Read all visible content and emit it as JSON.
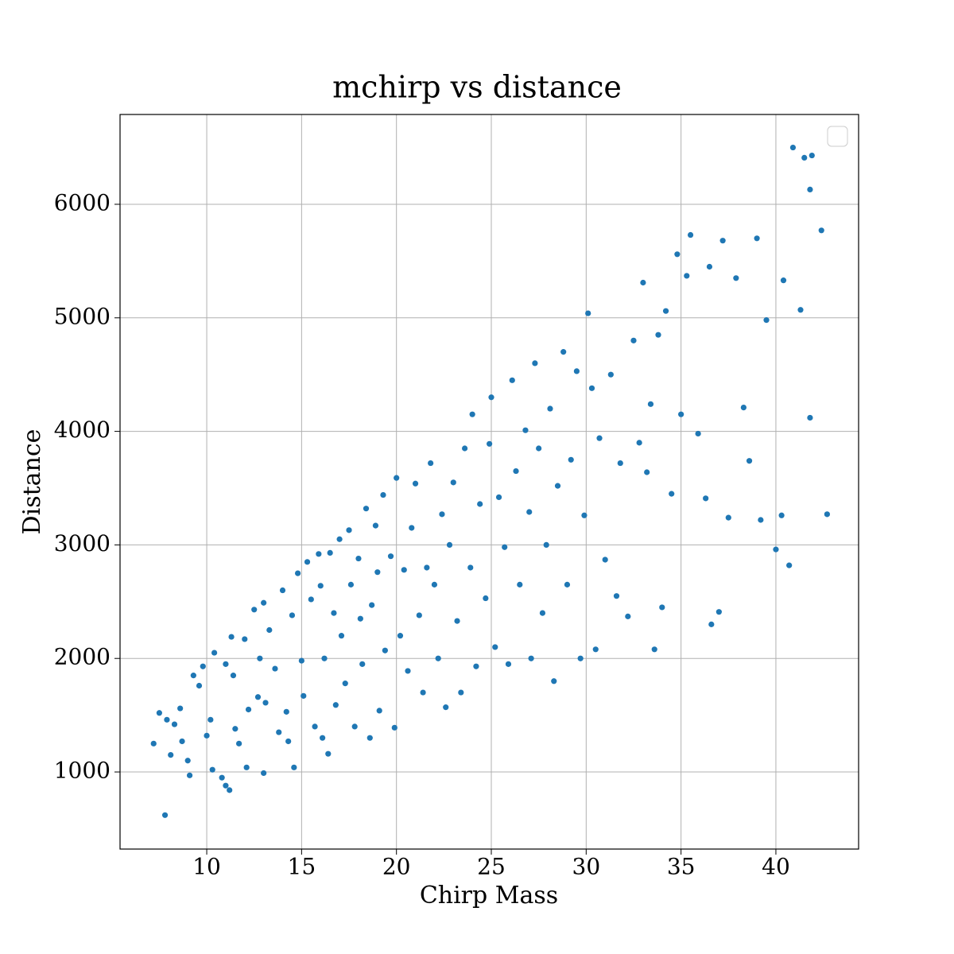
{
  "chart_data": {
    "type": "scatter",
    "title": "mchirp vs distance",
    "x_label": "Chirp Mass",
    "y_label": "Distance",
    "color": "#1f77b4",
    "grid": true,
    "xlim": [
      5.43,
      44.36
    ],
    "ylim": [
      321,
      6791
    ],
    "xticks": [
      10,
      15,
      20,
      25,
      30,
      35,
      40
    ],
    "yticks": [
      1000,
      2000,
      3000,
      4000,
      5000,
      6000
    ],
    "x": [
      7.2,
      7.5,
      7.8,
      7.9,
      8.1,
      8.3,
      8.6,
      8.7,
      9.0,
      9.1,
      9.3,
      9.6,
      9.8,
      10.0,
      10.2,
      10.3,
      10.4,
      10.8,
      11.0,
      11.2,
      11.0,
      11.3,
      11.4,
      11.5,
      11.7,
      12.0,
      12.1,
      12.2,
      12.5,
      12.7,
      12.8,
      13.0,
      13.0,
      13.1,
      13.3,
      13.6,
      13.8,
      14.0,
      14.2,
      14.3,
      14.5,
      14.6,
      14.8,
      15.0,
      15.1,
      15.3,
      15.5,
      15.7,
      15.9,
      16.0,
      16.1,
      16.2,
      16.4,
      16.5,
      16.7,
      16.8,
      17.0,
      17.1,
      17.3,
      17.5,
      17.6,
      17.8,
      18.0,
      18.1,
      18.2,
      18.4,
      18.6,
      18.7,
      18.9,
      19.0,
      19.1,
      19.3,
      19.4,
      19.7,
      19.9,
      20.0,
      20.2,
      20.4,
      20.6,
      20.8,
      21.0,
      21.2,
      21.4,
      21.6,
      21.8,
      22.0,
      22.2,
      22.4,
      22.6,
      22.8,
      23.0,
      23.2,
      23.4,
      23.6,
      23.9,
      24.0,
      24.2,
      24.4,
      24.7,
      24.9,
      25.0,
      25.2,
      25.4,
      25.7,
      25.9,
      26.1,
      26.3,
      26.5,
      26.8,
      27.0,
      27.1,
      27.3,
      27.5,
      27.7,
      27.9,
      28.1,
      28.3,
      28.5,
      28.8,
      29.0,
      29.2,
      29.5,
      29.7,
      29.9,
      30.1,
      30.3,
      30.5,
      30.7,
      31.0,
      31.3,
      31.6,
      31.8,
      32.2,
      32.5,
      32.8,
      33.0,
      33.2,
      33.4,
      33.6,
      33.8,
      34.0,
      34.2,
      34.5,
      34.8,
      35.0,
      35.3,
      35.5,
      35.9,
      36.3,
      36.5,
      36.6,
      37.0,
      37.2,
      37.5,
      37.9,
      38.3,
      38.6,
      39.0,
      39.2,
      39.5,
      40.0,
      40.3,
      40.4,
      40.7,
      40.9,
      41.3,
      41.5,
      41.8,
      41.9,
      42.4,
      42.7,
      41.8
    ],
    "y": [
      1250,
      1520,
      620,
      1460,
      1150,
      1420,
      1560,
      1270,
      1100,
      970,
      1850,
      1760,
      1930,
      1320,
      1460,
      1020,
      2050,
      950,
      880,
      840,
      1950,
      2190,
      1850,
      1380,
      1250,
      2170,
      1040,
      1550,
      2430,
      1660,
      2000,
      2490,
      990,
      1610,
      2250,
      1910,
      1350,
      2600,
      1530,
      1270,
      2380,
      1040,
      2750,
      1980,
      1670,
      2850,
      2520,
      1400,
      2920,
      2640,
      1300,
      2000,
      1160,
      2930,
      2400,
      1590,
      3050,
      2200,
      1780,
      3130,
      2650,
      1400,
      2880,
      2350,
      1950,
      3320,
      1300,
      2470,
      3170,
      2760,
      1540,
      3440,
      2070,
      2900,
      1390,
      3590,
      2200,
      2780,
      1890,
      3150,
      3540,
      2380,
      1700,
      2800,
      3720,
      2650,
      2000,
      3270,
      1570,
      3000,
      3550,
      2330,
      1700,
      3850,
      2800,
      4150,
      1930,
      3360,
      2530,
      3890,
      4300,
      2100,
      3420,
      2980,
      1950,
      4450,
      3650,
      2650,
      4010,
      3290,
      2000,
      4600,
      3850,
      2400,
      3000,
      4200,
      1800,
      3520,
      4700,
      2650,
      3750,
      4530,
      2000,
      3260,
      5040,
      4380,
      2080,
      3940,
      2870,
      4500,
      2550,
      3720,
      2370,
      4800,
      3900,
      5310,
      3640,
      4240,
      2080,
      4850,
      2450,
      5060,
      3450,
      5560,
      4150,
      5370,
      5730,
      3980,
      3410,
      5450,
      2300,
      2410,
      5680,
      3240,
      5350,
      4210,
      3740,
      5700,
      3220,
      4980,
      2960,
      3260,
      5330,
      2820,
      6500,
      5070,
      6410,
      6130,
      6430,
      5770,
      3270,
      4120
    ]
  }
}
